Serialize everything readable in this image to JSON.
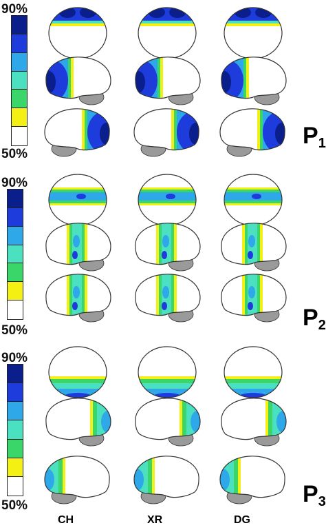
{
  "colorbar": {
    "top_label": "90%",
    "bottom_label": "50%",
    "levels": [
      "#0a1e8c",
      "#1e3cdc",
      "#2ea8e8",
      "#4ae0c0",
      "#3ad66a",
      "#f4f014",
      "#ffffff"
    ]
  },
  "panels": [
    {
      "label_main": "P",
      "label_sub": "1",
      "topo": "frontal"
    },
    {
      "label_main": "P",
      "label_sub": "2",
      "topo": "central"
    },
    {
      "label_main": "P",
      "label_sub": "3",
      "topo": "occipital"
    }
  ],
  "columns": [
    "CH",
    "XR",
    "DG"
  ],
  "colors": {
    "dark_blue": "#0a1e8c",
    "blue": "#1e3cdc",
    "light_blue": "#2ea8e8",
    "aqua": "#4ae0c0",
    "green": "#3ad66a",
    "yellow": "#f4f014",
    "outline": "#333333",
    "cerebellum": "#9a9a9a"
  }
}
